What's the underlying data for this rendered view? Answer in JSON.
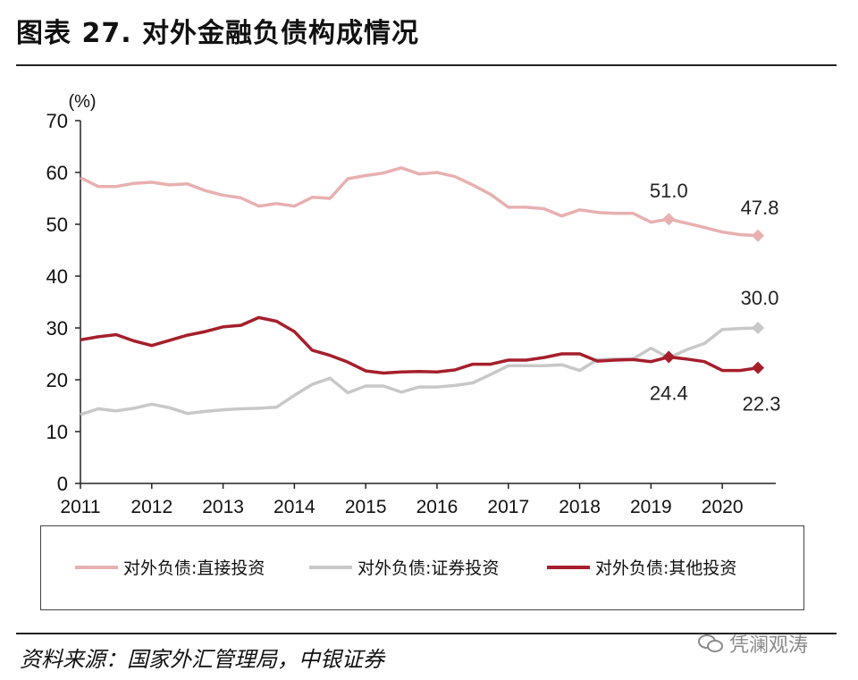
{
  "header": {
    "title": "图表 27. 对外金融负债构成情况"
  },
  "footer": {
    "source": "资料来源：国家外汇管理局，中银证券",
    "watermark": "凭澜观涛",
    "watermark_icon": "wechat-icon"
  },
  "colors": {
    "direct": "#e8b0b0",
    "securities": "#c8c8c8",
    "other": "#a51f2b",
    "axis": "#222222"
  },
  "chart_data": {
    "type": "line",
    "title": "",
    "ylabel": "(%)",
    "ylim": [
      0,
      70
    ],
    "yticks": [
      0,
      10,
      20,
      30,
      40,
      50,
      60,
      70
    ],
    "xlim": [
      2011,
      2020.75
    ],
    "xticks": [
      2011,
      2012,
      2013,
      2014,
      2015,
      2016,
      2017,
      2018,
      2019,
      2020
    ],
    "xticklabels": [
      "2011",
      "2012",
      "2013",
      "2014",
      "2015",
      "2016",
      "2017",
      "2018",
      "2019",
      "2020"
    ],
    "grid": false,
    "legend_position": "bottom",
    "x": [
      2011.0,
      2011.25,
      2011.5,
      2011.75,
      2012.0,
      2012.25,
      2012.5,
      2012.75,
      2013.0,
      2013.25,
      2013.5,
      2013.75,
      2014.0,
      2014.25,
      2014.5,
      2014.75,
      2015.0,
      2015.25,
      2015.5,
      2015.75,
      2016.0,
      2016.25,
      2016.5,
      2016.75,
      2017.0,
      2017.25,
      2017.5,
      2017.75,
      2018.0,
      2018.25,
      2018.5,
      2018.75,
      2019.0,
      2019.25,
      2019.5,
      2019.75,
      2020.0,
      2020.25,
      2020.5
    ],
    "series": [
      {
        "name": "对外负债:直接投资",
        "color_key": "direct",
        "values": [
          59.0,
          57.3,
          57.3,
          57.9,
          58.1,
          57.6,
          57.8,
          56.5,
          55.6,
          55.1,
          53.5,
          54.0,
          53.5,
          55.2,
          55.0,
          58.8,
          59.4,
          59.9,
          60.9,
          59.7,
          60.0,
          59.2,
          57.6,
          55.8,
          53.3,
          53.3,
          53.0,
          51.6,
          52.8,
          52.3,
          52.1,
          52.1,
          50.4,
          51.0,
          50.2,
          49.4,
          48.5,
          48.0,
          47.8
        ],
        "end_label": "47.8",
        "annotations": [
          {
            "x": 2019.25,
            "value": 51.0,
            "label": "51.0"
          },
          {
            "x": 2020.5,
            "value": 47.8,
            "label": "47.8"
          }
        ]
      },
      {
        "name": "对外负债:证券投资",
        "color_key": "securities",
        "values": [
          13.3,
          14.4,
          14.0,
          14.5,
          15.3,
          14.6,
          13.5,
          13.9,
          14.2,
          14.4,
          14.5,
          14.7,
          17.0,
          19.1,
          20.3,
          17.5,
          18.8,
          18.8,
          17.6,
          18.6,
          18.6,
          18.9,
          19.4,
          21.0,
          22.7,
          22.7,
          22.7,
          22.9,
          21.8,
          23.9,
          24.0,
          24.0,
          26.1,
          24.2,
          25.8,
          27.0,
          29.7,
          29.9,
          30.0
        ],
        "annotations": [
          {
            "x": 2020.5,
            "value": 30.0,
            "label": "30.0"
          }
        ]
      },
      {
        "name": "对外负债:其他投资",
        "color_key": "other",
        "values": [
          27.7,
          28.3,
          28.7,
          27.5,
          26.6,
          27.6,
          28.6,
          29.3,
          30.2,
          30.5,
          32.0,
          31.3,
          29.3,
          25.7,
          24.7,
          23.4,
          21.7,
          21.3,
          21.5,
          21.6,
          21.5,
          21.9,
          23.0,
          23.0,
          23.8,
          23.8,
          24.3,
          25.0,
          25.0,
          23.6,
          23.8,
          23.9,
          23.5,
          24.4,
          24.0,
          23.5,
          21.8,
          21.8,
          22.3
        ],
        "annotations": [
          {
            "x": 2019.25,
            "value": 24.4,
            "label": "24.4"
          },
          {
            "x": 2020.5,
            "value": 22.3,
            "label": "22.3"
          }
        ]
      }
    ]
  }
}
